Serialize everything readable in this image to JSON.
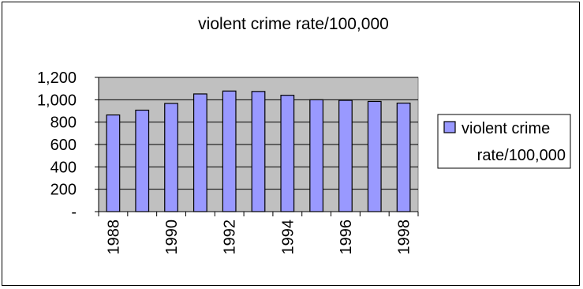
{
  "chart_data": {
    "type": "bar",
    "title": "violent crime rate/100,000",
    "categories": [
      "1988",
      "1989",
      "1990",
      "1991",
      "1992",
      "1993",
      "1994",
      "1995",
      "1996",
      "1997",
      "1998"
    ],
    "x_tick_labels": [
      "1988",
      "1990",
      "1992",
      "1994",
      "1996",
      "1998"
    ],
    "series": [
      {
        "name": "violent crime rate/100,000",
        "color": "#9999ff",
        "values": [
          864,
          907,
          967,
          1052,
          1078,
          1074,
          1040,
          1000,
          995,
          985,
          970
        ]
      }
    ],
    "y_ticks": [
      0,
      200,
      400,
      600,
      800,
      1000,
      1200
    ],
    "y_tick_labels": [
      "-",
      "200",
      "400",
      "600",
      "800",
      "1,000",
      "1,200"
    ],
    "ylim": [
      0,
      1200
    ],
    "plot_background": "#c0c0c0",
    "grid": true,
    "legend": {
      "position": "right",
      "line1": "violent crime",
      "line2": "rate/100,000"
    }
  }
}
